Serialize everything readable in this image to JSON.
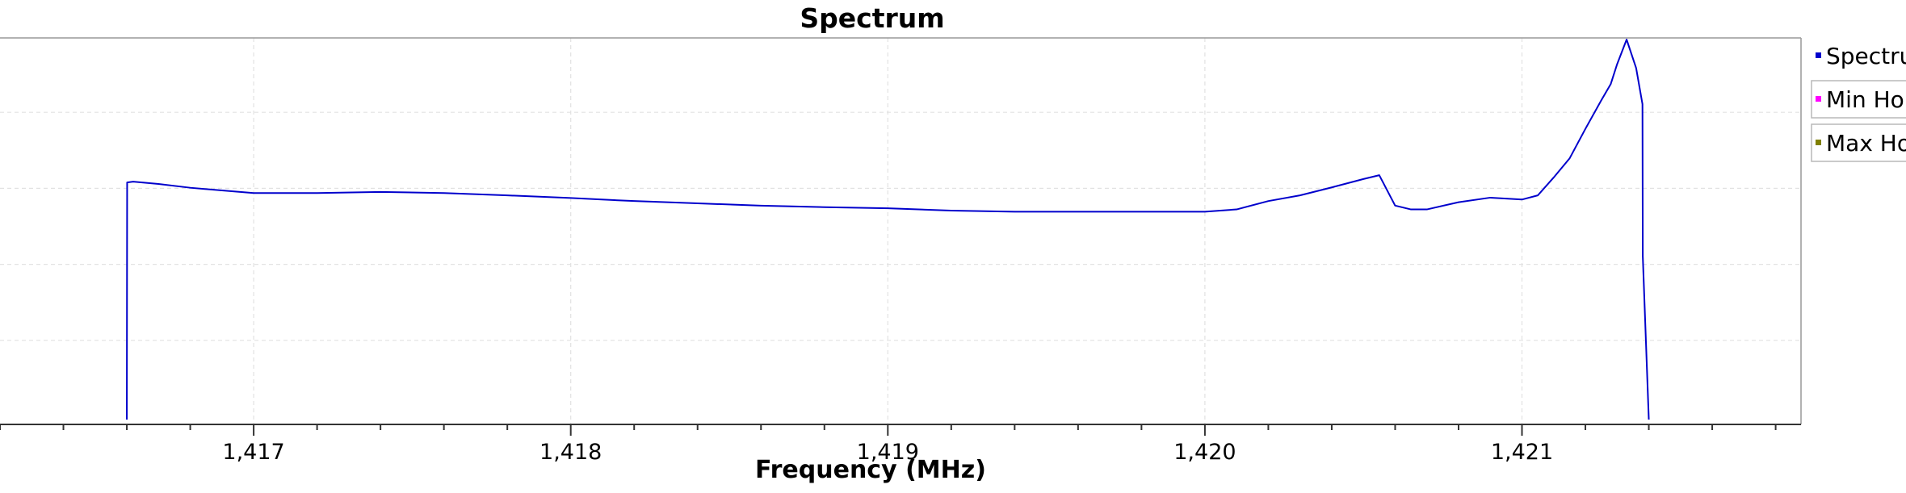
{
  "chart_data": {
    "type": "line",
    "title": "Spectrum",
    "xlabel": "Frequency (MHz)",
    "ylabel": "",
    "xlim": [
      1416.2,
      1421.88
    ],
    "ylim": [
      0,
      100
    ],
    "grid": true,
    "legend_position": "right",
    "x_ticks": [
      "1,417",
      "1,418",
      "1,419",
      "1,420",
      "1,421"
    ],
    "x_tick_values": [
      1417,
      1418,
      1419,
      1420,
      1421
    ],
    "series": [
      {
        "name": "Spectrum",
        "color": "#0000cc",
        "x": [
          1416.6,
          1416.601,
          1416.62,
          1416.7,
          1416.8,
          1416.9,
          1417.0,
          1417.2,
          1417.4,
          1417.6,
          1417.8,
          1418.0,
          1418.2,
          1418.4,
          1418.6,
          1418.8,
          1419.0,
          1419.2,
          1419.4,
          1419.6,
          1419.8,
          1420.0,
          1420.1,
          1420.2,
          1420.3,
          1420.4,
          1420.5,
          1420.55,
          1420.6,
          1420.65,
          1420.7,
          1420.8,
          1420.9,
          1421.0,
          1421.05,
          1421.1,
          1421.15,
          1421.2,
          1421.25,
          1421.28,
          1421.3,
          1421.33,
          1421.36,
          1421.38,
          1421.381,
          1421.4
        ],
        "values": [
          0,
          62.4,
          62.6,
          62.0,
          61.0,
          60.3,
          59.6,
          59.6,
          59.9,
          59.6,
          59.0,
          58.3,
          57.5,
          56.9,
          56.3,
          55.9,
          55.6,
          55.0,
          54.7,
          54.7,
          54.7,
          54.7,
          55.3,
          57.5,
          59.0,
          61.1,
          63.3,
          64.3,
          56.3,
          55.3,
          55.3,
          57.2,
          58.4,
          57.9,
          59.0,
          63.7,
          68.7,
          76.5,
          84.0,
          88.3,
          93.5,
          100.0,
          92.5,
          83.0,
          43.0,
          0
        ]
      },
      {
        "name": "Min Ho",
        "color": "#ff00ff",
        "x": [],
        "values": []
      },
      {
        "name": "Max Ho",
        "color": "#808000",
        "x": [],
        "values": []
      }
    ]
  }
}
